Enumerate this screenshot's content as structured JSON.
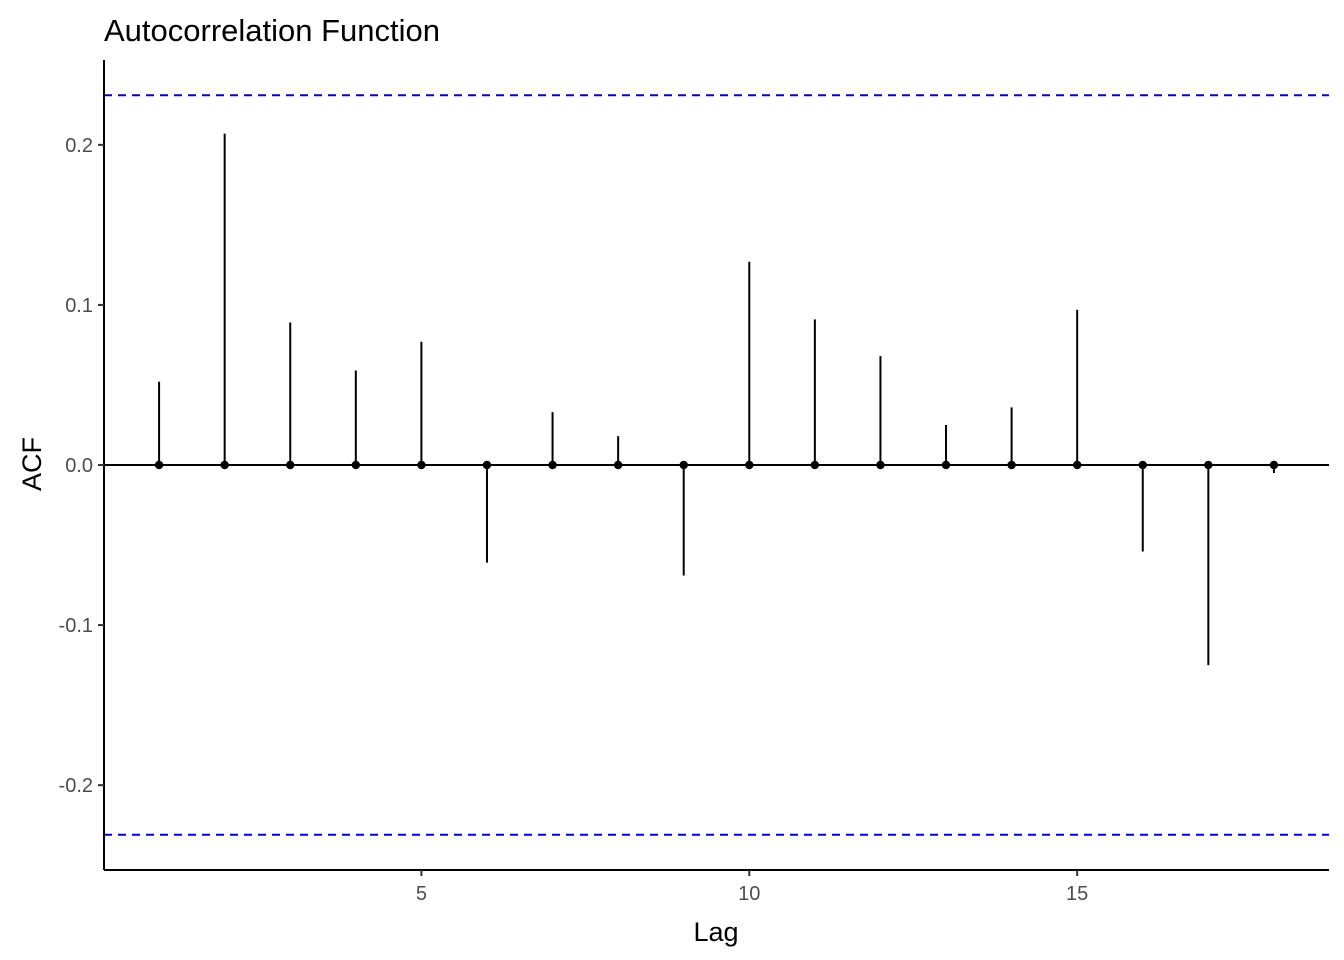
{
  "chart_data": {
    "type": "scatter",
    "subtype": "acf-lollipop",
    "title": "Autocorrelation Function",
    "xlabel": "Lag",
    "ylabel": "ACF",
    "x": [
      1,
      2,
      3,
      4,
      5,
      6,
      7,
      8,
      9,
      10,
      11,
      12,
      13,
      14,
      15,
      16,
      17,
      18
    ],
    "values": [
      0.052,
      0.207,
      0.089,
      0.059,
      0.077,
      -0.061,
      0.033,
      0.018,
      -0.069,
      0.127,
      0.091,
      0.068,
      0.025,
      0.036,
      0.097,
      -0.054,
      -0.125,
      -0.005
    ],
    "confidence_limits": [
      -0.231,
      0.231
    ],
    "xlim": [
      0.16,
      18.84
    ],
    "ylim": [
      -0.253,
      0.253
    ],
    "x_ticks": [
      5,
      10,
      15
    ],
    "x_tick_labels": [
      "5",
      "10",
      "15"
    ],
    "y_ticks": [
      -0.2,
      -0.1,
      0.0,
      0.1,
      0.2
    ],
    "y_tick_labels": [
      "-0.2",
      "-0.1",
      "0.0",
      "0.1",
      "0.2"
    ],
    "grid": false,
    "legend": "none",
    "colors": {
      "stem": "#000000",
      "point": "#000000",
      "confidence": "#0000cc",
      "zero_line": "#000000"
    }
  }
}
